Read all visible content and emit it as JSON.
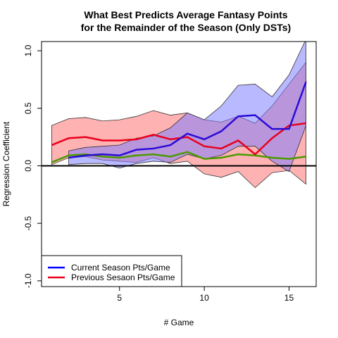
{
  "chart_data": {
    "type": "line",
    "title_line1": "What Best Predicts Average Fantasy Points",
    "title_line2": "for the Remainder of the Season (Only DSTs)",
    "xlabel": "# Game",
    "ylabel": "Regression Coefficient",
    "xlim": [
      0.4,
      16.6
    ],
    "ylim": [
      -1.05,
      1.08
    ],
    "xticks": [
      5,
      10,
      15
    ],
    "yticks": [
      -1.0,
      -0.5,
      0.0,
      0.5,
      1.0
    ],
    "ytick_labels": [
      "-1.0",
      "-0.5",
      "0.0",
      "0.5",
      "1.0"
    ],
    "zero_line": true,
    "legend": {
      "position": "bottom-left",
      "entries": [
        {
          "label": "Current Season Pts/Game",
          "color": "#0000ff"
        },
        {
          "label": "Previous Sesaon Pts/Game",
          "color": "#e8001c"
        }
      ]
    },
    "series": [
      {
        "name": "Current Season Pts/Game",
        "color": "#2a0bd8",
        "band_fill": "#8080ff",
        "band_opacity": 0.55,
        "x": [
          2,
          3,
          4,
          5,
          6,
          7,
          8,
          9,
          10,
          11,
          12,
          13,
          14,
          15,
          16
        ],
        "values": [
          0.07,
          0.09,
          0.1,
          0.09,
          0.14,
          0.15,
          0.18,
          0.28,
          0.23,
          0.3,
          0.43,
          0.44,
          0.32,
          0.32,
          0.73
        ],
        "upper": [
          0.13,
          0.16,
          0.17,
          0.18,
          0.24,
          0.26,
          0.33,
          0.46,
          0.4,
          0.52,
          0.7,
          0.71,
          0.6,
          0.79,
          1.1
        ],
        "lower": [
          0.01,
          0.02,
          0.02,
          -0.02,
          0.02,
          0.04,
          0.03,
          0.1,
          0.06,
          0.09,
          0.17,
          0.17,
          0.04,
          -0.05,
          0.35
        ]
      },
      {
        "name": "Previous Sesaon Pts/Game",
        "color": "#e8001c",
        "band_fill": "#ff7f7f",
        "band_opacity": 0.6,
        "x": [
          1,
          2,
          3,
          4,
          5,
          6,
          7,
          8,
          9,
          10,
          11,
          12,
          13,
          14,
          15,
          16
        ],
        "values": [
          0.18,
          0.24,
          0.25,
          0.22,
          0.22,
          0.23,
          0.27,
          0.23,
          0.25,
          0.17,
          0.15,
          0.22,
          0.1,
          0.24,
          0.35,
          0.37
        ],
        "upper": [
          0.35,
          0.41,
          0.42,
          0.39,
          0.4,
          0.43,
          0.48,
          0.44,
          0.46,
          0.4,
          0.38,
          0.43,
          0.37,
          0.52,
          0.71,
          0.9
        ],
        "lower": [
          0.01,
          0.07,
          0.08,
          0.05,
          0.04,
          0.03,
          0.07,
          0.02,
          0.04,
          -0.07,
          -0.1,
          -0.05,
          -0.19,
          -0.06,
          -0.04,
          -0.16
        ]
      },
      {
        "name": "",
        "color": "#4a9a00",
        "x": [
          1,
          2,
          3,
          4,
          5,
          6,
          7,
          8,
          9,
          10,
          11,
          12,
          13,
          14,
          15,
          16
        ],
        "values": [
          0.03,
          0.09,
          0.1,
          0.08,
          0.07,
          0.09,
          0.1,
          0.08,
          0.12,
          0.06,
          0.07,
          0.1,
          0.09,
          0.07,
          0.06,
          0.08
        ]
      }
    ]
  }
}
